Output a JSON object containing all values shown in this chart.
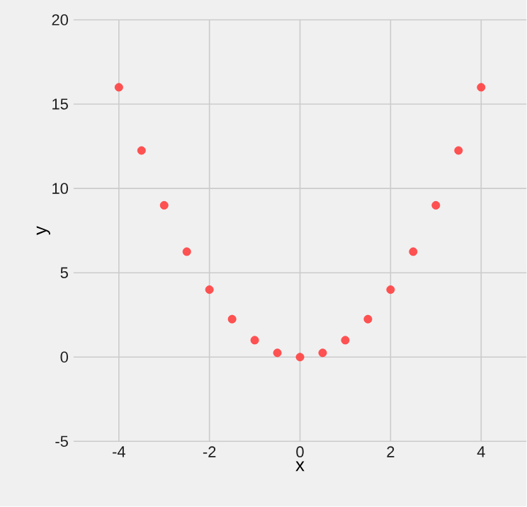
{
  "chart_data": {
    "type": "scatter",
    "xlabel": "x",
    "ylabel": "y",
    "x": [
      -4,
      -3.5,
      -3,
      -2.5,
      -2,
      -1.5,
      -1,
      -0.5,
      0,
      0.5,
      1,
      1.5,
      2,
      2.5,
      3,
      3.5,
      4
    ],
    "series": [
      {
        "color": "#ff4040",
        "values": [
          16,
          12.25,
          9,
          6.25,
          4,
          2.25,
          1,
          0.25,
          0,
          0.25,
          1,
          2.25,
          4,
          6.25,
          9,
          12.25,
          16
        ]
      }
    ],
    "xlim": [
      -5,
      5
    ],
    "ylim": [
      -5,
      20
    ],
    "xticks": [
      -4,
      -2,
      0,
      2,
      4
    ],
    "yticks": [
      -5,
      0,
      5,
      10,
      15,
      20
    ],
    "grid": true,
    "marker": "circle"
  }
}
